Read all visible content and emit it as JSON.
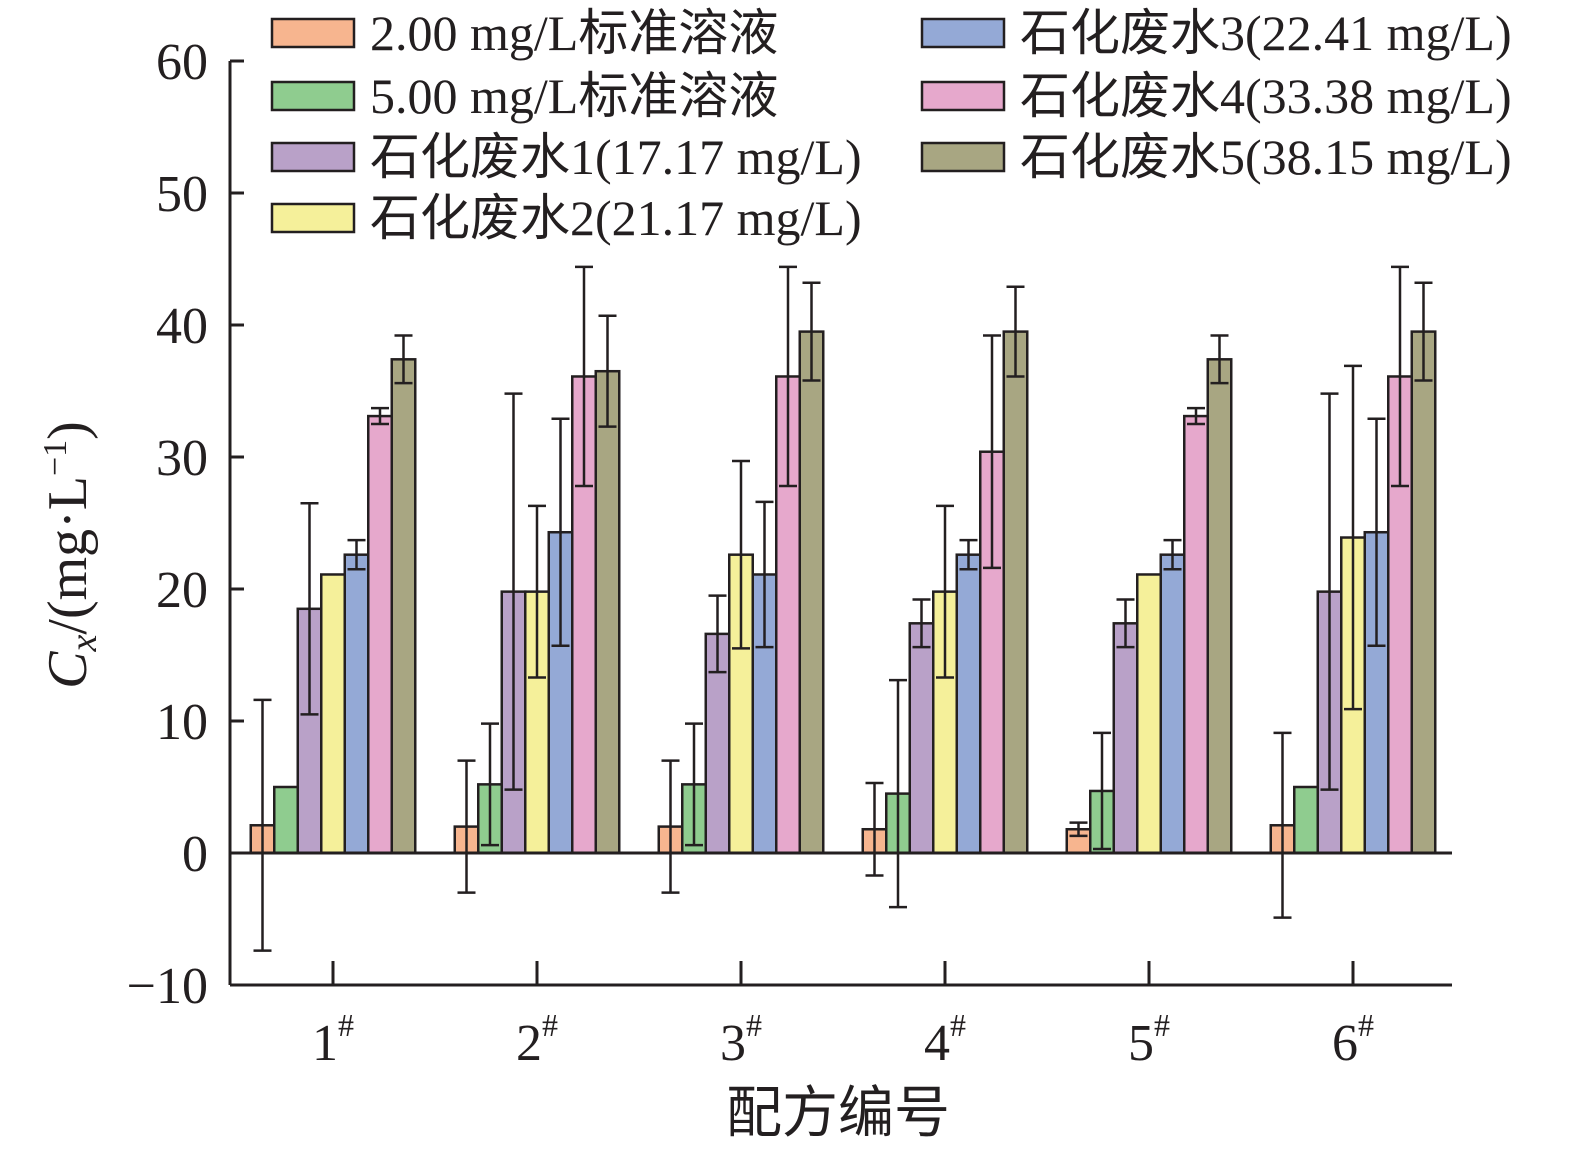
{
  "chart_data": {
    "type": "bar",
    "ylabel_var": "C",
    "ylabel_sub": "x",
    "ylabel_unit": "/(mg·L",
    "ylabel_exp": "−1",
    "ylabel_close": ")",
    "xlabel": "配方编号",
    "ylim": [
      -10,
      60
    ],
    "yticks": [
      -10,
      0,
      10,
      20,
      30,
      40,
      50,
      60
    ],
    "ytick_labels": [
      "−10",
      "0",
      "10",
      "20",
      "30",
      "40",
      "50",
      "60"
    ],
    "grid": false,
    "legend_placement": "top, two columns",
    "categories": [
      {
        "main": "1",
        "sup": "#"
      },
      {
        "main": "2",
        "sup": "#"
      },
      {
        "main": "3",
        "sup": "#"
      },
      {
        "main": "4",
        "sup": "#"
      },
      {
        "main": "5",
        "sup": "#"
      },
      {
        "main": "6",
        "sup": "#"
      }
    ],
    "series": [
      {
        "name": "2.00 mg/L标准溶液",
        "color": "#f7b58f",
        "values": [
          2.1,
          2.0,
          2.0,
          1.8,
          1.8,
          2.1
        ],
        "errors": [
          9.5,
          5.0,
          5.0,
          3.5,
          0.5,
          7.0
        ]
      },
      {
        "name": "5.00 mg/L标准溶液",
        "color": "#8fcc8f",
        "values": [
          5.0,
          5.2,
          5.2,
          4.5,
          4.7,
          5.0
        ],
        "errors": [
          0,
          4.6,
          4.6,
          8.6,
          4.4,
          0
        ]
      },
      {
        "name": "石化废水1(17.17 mg/L)",
        "color": "#b9a1c8",
        "values": [
          18.5,
          19.8,
          16.6,
          17.4,
          17.4,
          19.8
        ],
        "errors": [
          8.0,
          15.0,
          2.9,
          1.8,
          1.8,
          15.0
        ]
      },
      {
        "name": "石化废水2(21.17 mg/L)",
        "color": "#f5f09a",
        "values": [
          21.1,
          19.8,
          22.6,
          19.8,
          21.1,
          23.9
        ],
        "errors": [
          0,
          6.5,
          7.1,
          6.5,
          0,
          13.0
        ]
      },
      {
        "name": "石化废水3(22.41 mg/L)",
        "color": "#94a9d6",
        "values": [
          22.6,
          24.3,
          21.1,
          22.6,
          22.6,
          24.3
        ],
        "errors": [
          1.1,
          8.6,
          5.5,
          1.1,
          1.1,
          8.6
        ]
      },
      {
        "name": "石化废水4(33.38 mg/L)",
        "color": "#e6a8cc",
        "values": [
          33.1,
          36.1,
          36.1,
          30.4,
          33.1,
          36.1
        ],
        "errors": [
          0.6,
          8.3,
          8.3,
          8.8,
          0.6,
          8.3
        ]
      },
      {
        "name": "石化废水5(38.15 mg/L)",
        "color": "#a8a682",
        "values": [
          37.4,
          36.5,
          39.5,
          39.5,
          37.4,
          39.5
        ],
        "errors": [
          1.8,
          4.2,
          3.7,
          3.4,
          1.8,
          3.7
        ]
      }
    ]
  }
}
